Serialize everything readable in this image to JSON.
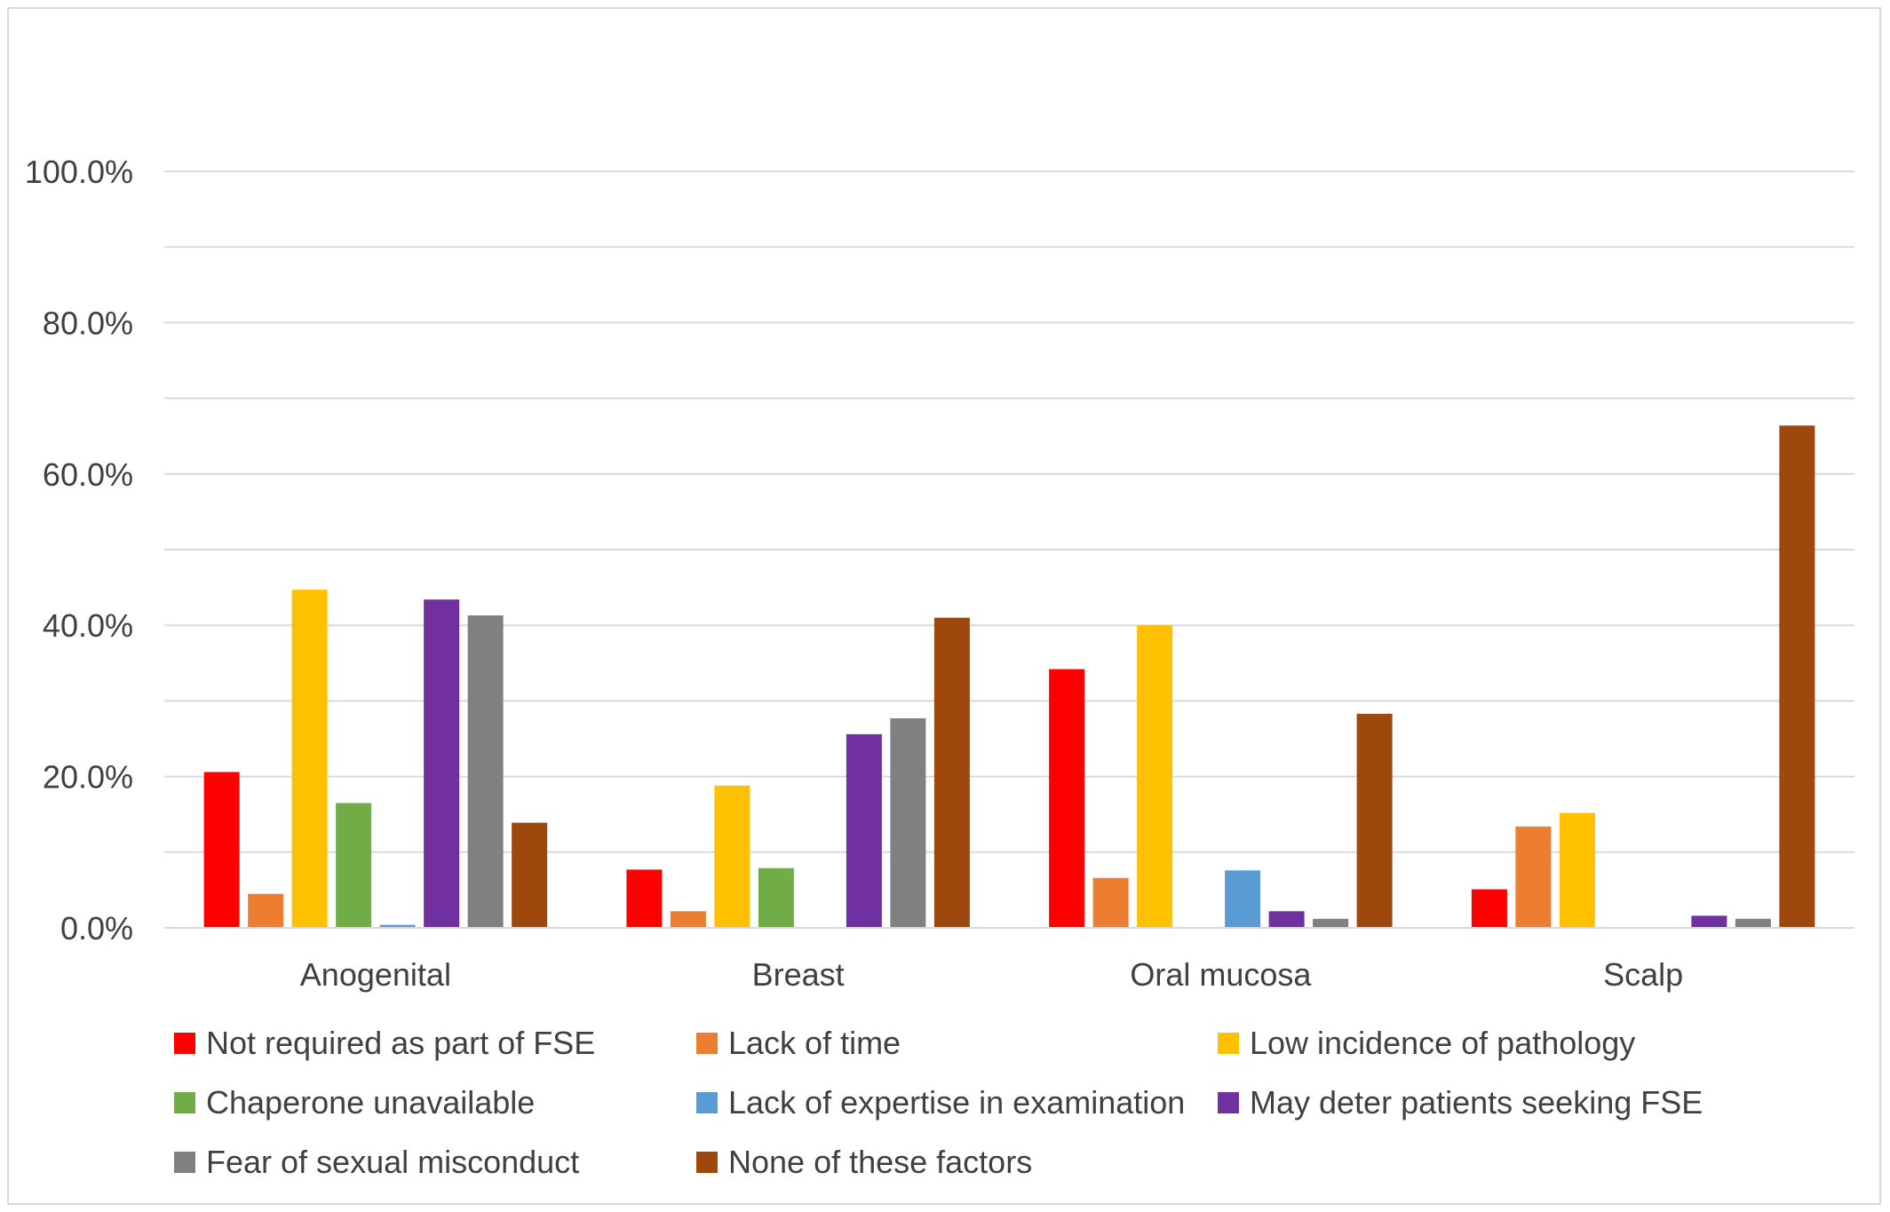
{
  "chart_data": {
    "type": "bar",
    "title": "",
    "xlabel": "",
    "ylabel": "",
    "ylim": [
      0,
      100
    ],
    "y_ticks": [
      "0.0%",
      "20.0%",
      "40.0%",
      "60.0%",
      "80.0%",
      "100.0%"
    ],
    "y_tick_values": [
      0,
      20,
      40,
      60,
      80,
      100
    ],
    "grid": true,
    "legend_position": "bottom",
    "categories": [
      "Anogenital",
      "Breast",
      "Oral mucosa",
      "Scalp"
    ],
    "series": [
      {
        "name": "Not required as part of FSE",
        "color": "#ff0000",
        "values": [
          20.6,
          7.7,
          34.2,
          5.1
        ]
      },
      {
        "name": "Lack of time",
        "color": "#ed7d31",
        "values": [
          4.5,
          2.2,
          6.6,
          13.4
        ]
      },
      {
        "name": "Low incidence of pathology",
        "color": "#ffc000",
        "values": [
          44.7,
          18.8,
          40.0,
          15.2
        ]
      },
      {
        "name": "Chaperone unavailable",
        "color": "#70ad47",
        "values": [
          16.5,
          7.9,
          0,
          0
        ]
      },
      {
        "name": "Lack of expertise in examination",
        "color": "#5b9bd5",
        "values": [
          0.4,
          0,
          7.6,
          0
        ]
      },
      {
        "name": "May deter patients seeking FSE",
        "color": "#7030a0",
        "values": [
          43.4,
          25.6,
          2.2,
          1.6
        ]
      },
      {
        "name": "Fear of sexual misconduct",
        "color": "#808080",
        "values": [
          41.3,
          27.7,
          1.2,
          1.2
        ]
      },
      {
        "name": "None of these factors",
        "color": "#9e480e",
        "values": [
          13.9,
          41.0,
          28.3,
          66.4
        ]
      }
    ]
  }
}
